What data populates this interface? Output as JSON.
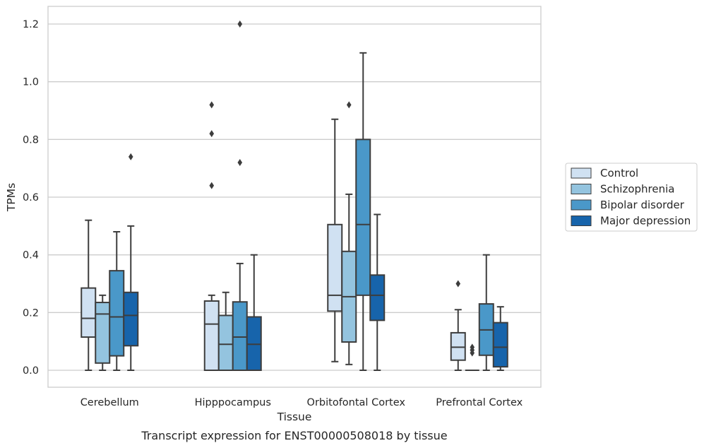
{
  "chart_data": {
    "type": "box",
    "xlabel": "Tissue",
    "ylabel": "TPMs",
    "caption": "Transcript expression for ENST00000508018 by tissue",
    "ylim": [
      -0.06,
      1.26
    ],
    "yticks": [
      "0.0",
      "0.2",
      "0.4",
      "0.6",
      "0.8",
      "1.0",
      "1.2"
    ],
    "ytick_values": [
      0.0,
      0.2,
      0.4,
      0.6,
      0.8,
      1.0,
      1.2
    ],
    "grid": "horizontal",
    "legend_position": "right",
    "categories": [
      "Cerebellum",
      "Hipppocampus",
      "Orbitofontal Cortex",
      "Prefrontal Cortex"
    ],
    "series": [
      {
        "name": "Control",
        "color": "#d0e1f2",
        "boxes": [
          {
            "whislo": 0.0,
            "q1": 0.115,
            "med": 0.18,
            "q3": 0.285,
            "whishi": 0.52,
            "fliers": []
          },
          {
            "whislo": 0.0,
            "q1": 0.0,
            "med": 0.16,
            "q3": 0.24,
            "whishi": 0.26,
            "fliers": [
              0.64,
              0.82,
              0.92
            ]
          },
          {
            "whislo": 0.03,
            "q1": 0.205,
            "med": 0.26,
            "q3": 0.505,
            "whishi": 0.87,
            "fliers": []
          },
          {
            "whislo": 0.0,
            "q1": 0.035,
            "med": 0.08,
            "q3": 0.13,
            "whishi": 0.21,
            "fliers": [
              0.3
            ]
          }
        ]
      },
      {
        "name": "Schizophrenia",
        "color": "#94c4df",
        "boxes": [
          {
            "whislo": 0.0,
            "q1": 0.025,
            "med": 0.195,
            "q3": 0.235,
            "whishi": 0.26,
            "fliers": []
          },
          {
            "whislo": 0.0,
            "q1": 0.0,
            "med": 0.09,
            "q3": 0.19,
            "whishi": 0.27,
            "fliers": []
          },
          {
            "whislo": 0.02,
            "q1": 0.098,
            "med": 0.255,
            "q3": 0.412,
            "whishi": 0.61,
            "fliers": [
              0.92
            ]
          },
          {
            "whislo": 0.0,
            "q1": 0.0,
            "med": 0.0,
            "q3": 0.0,
            "whishi": 0.0,
            "fliers": [
              0.06,
              0.07,
              0.08
            ]
          }
        ]
      },
      {
        "name": "Bipolar disorder",
        "color": "#4a98c9",
        "boxes": [
          {
            "whislo": 0.0,
            "q1": 0.05,
            "med": 0.185,
            "q3": 0.345,
            "whishi": 0.48,
            "fliers": []
          },
          {
            "whislo": 0.0,
            "q1": 0.0,
            "med": 0.115,
            "q3": 0.237,
            "whishi": 0.37,
            "fliers": [
              0.72,
              1.2
            ]
          },
          {
            "whislo": 0.0,
            "q1": 0.26,
            "med": 0.505,
            "q3": 0.8,
            "whishi": 1.1,
            "fliers": []
          },
          {
            "whislo": 0.0,
            "q1": 0.052,
            "med": 0.14,
            "q3": 0.23,
            "whishi": 0.4,
            "fliers": []
          }
        ]
      },
      {
        "name": "Major depression",
        "color": "#1764ab",
        "boxes": [
          {
            "whislo": 0.0,
            "q1": 0.085,
            "med": 0.19,
            "q3": 0.27,
            "whishi": 0.5,
            "fliers": [
              0.74
            ]
          },
          {
            "whislo": 0.0,
            "q1": 0.0,
            "med": 0.09,
            "q3": 0.185,
            "whishi": 0.4,
            "fliers": []
          },
          {
            "whislo": 0.0,
            "q1": 0.173,
            "med": 0.26,
            "q3": 0.33,
            "whishi": 0.54,
            "fliers": []
          },
          {
            "whislo": 0.0,
            "q1": 0.012,
            "med": 0.08,
            "q3": 0.165,
            "whishi": 0.22,
            "fliers": []
          }
        ]
      }
    ]
  }
}
